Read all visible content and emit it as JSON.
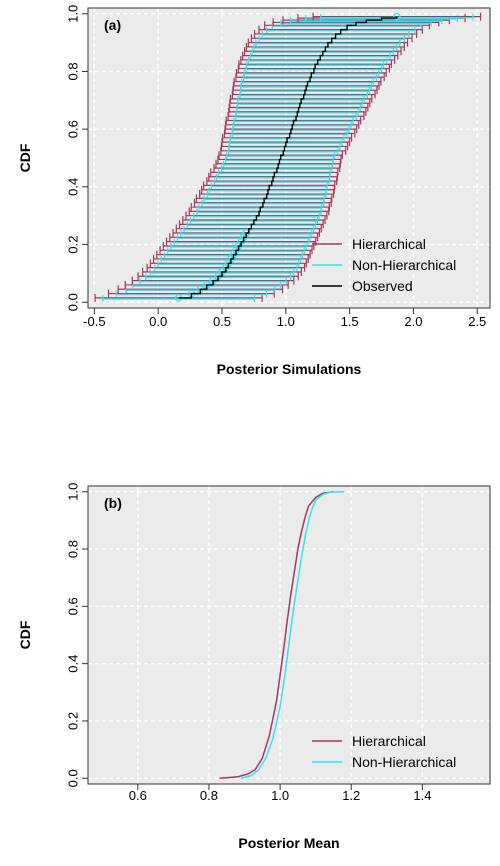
{
  "chart_data": [
    {
      "type": "line",
      "panel_label": "(a)",
      "xlabel": "Posterior Simulations",
      "ylabel": "CDF",
      "xlim": [
        -0.55,
        2.6
      ],
      "ylim": [
        -0.02,
        1.02
      ],
      "x_ticks": [
        "-0.5",
        "0.0",
        "0.5",
        "1.0",
        "1.5",
        "2.0",
        "2.5"
      ],
      "y_ticks": [
        "0.0",
        "0.2",
        "0.4",
        "0.6",
        "0.8",
        "1.0"
      ],
      "grid": true,
      "legend_position": "bottom-right",
      "series": [
        {
          "name": "Hierarchical",
          "color": "#a0395e",
          "style": "interval"
        },
        {
          "name": "Non-Hierarchical",
          "color": "#33e5ee",
          "style": "interval"
        },
        {
          "name": "Observed",
          "color": "#000000",
          "style": "line"
        }
      ],
      "observed": {
        "x": [
          0.16,
          0.26,
          0.33,
          0.38,
          0.43,
          0.47,
          0.5,
          0.53,
          0.55,
          0.57,
          0.59,
          0.61,
          0.63,
          0.65,
          0.67,
          0.69,
          0.71,
          0.73,
          0.75,
          0.77,
          0.79,
          0.8,
          0.82,
          0.83,
          0.85,
          0.86,
          0.87,
          0.89,
          0.9,
          0.91,
          0.93,
          0.94,
          0.95,
          0.96,
          0.98,
          0.99,
          1.0,
          1.01,
          1.03,
          1.04,
          1.05,
          1.06,
          1.08,
          1.09,
          1.1,
          1.11,
          1.12,
          1.14,
          1.15,
          1.16,
          1.17,
          1.19,
          1.2,
          1.22,
          1.23,
          1.25,
          1.27,
          1.29,
          1.31,
          1.33,
          1.36,
          1.39,
          1.43,
          1.48,
          1.55,
          1.63,
          1.75,
          1.87
        ],
        "y": [
          0.015,
          0.03,
          0.045,
          0.06,
          0.075,
          0.09,
          0.105,
          0.12,
          0.135,
          0.15,
          0.165,
          0.18,
          0.195,
          0.21,
          0.225,
          0.24,
          0.255,
          0.27,
          0.285,
          0.3,
          0.315,
          0.33,
          0.345,
          0.36,
          0.375,
          0.39,
          0.405,
          0.42,
          0.435,
          0.45,
          0.465,
          0.48,
          0.495,
          0.51,
          0.525,
          0.54,
          0.555,
          0.57,
          0.585,
          0.6,
          0.615,
          0.63,
          0.645,
          0.66,
          0.675,
          0.69,
          0.705,
          0.72,
          0.735,
          0.75,
          0.765,
          0.78,
          0.795,
          0.81,
          0.825,
          0.84,
          0.855,
          0.87,
          0.885,
          0.9,
          0.915,
          0.93,
          0.945,
          0.96,
          0.97,
          0.978,
          0.985,
          0.99
        ]
      }
    },
    {
      "type": "line",
      "panel_label": "(b)",
      "xlabel": "Posterior Mean",
      "ylabel": "CDF",
      "xlim": [
        0.46,
        1.59
      ],
      "ylim": [
        -0.02,
        1.02
      ],
      "x_ticks": [
        "0.6",
        "0.8",
        "1.0",
        "1.2",
        "1.4"
      ],
      "y_ticks": [
        "0.0",
        "0.2",
        "0.4",
        "0.6",
        "0.8",
        "1.0"
      ],
      "grid": true,
      "legend_position": "bottom-right",
      "series": [
        {
          "name": "Hierarchical",
          "color": "#a0395e",
          "x": [
            0.83,
            0.88,
            0.91,
            0.93,
            0.95,
            0.97,
            0.99,
            1.0,
            1.01,
            1.02,
            1.03,
            1.04,
            1.05,
            1.06,
            1.07,
            1.08,
            1.1,
            1.12,
            1.15
          ],
          "y": [
            0.0,
            0.005,
            0.015,
            0.03,
            0.07,
            0.15,
            0.27,
            0.36,
            0.45,
            0.55,
            0.64,
            0.72,
            0.8,
            0.86,
            0.91,
            0.95,
            0.98,
            0.995,
            1.0
          ]
        },
        {
          "name": "Non-Hierarchical",
          "color": "#33e5ee",
          "x": [
            0.89,
            0.92,
            0.94,
            0.96,
            0.98,
            1.0,
            1.01,
            1.02,
            1.03,
            1.04,
            1.05,
            1.06,
            1.07,
            1.08,
            1.09,
            1.1,
            1.12,
            1.14,
            1.18
          ],
          "y": [
            0.0,
            0.01,
            0.03,
            0.07,
            0.14,
            0.25,
            0.33,
            0.42,
            0.52,
            0.61,
            0.69,
            0.77,
            0.84,
            0.9,
            0.94,
            0.97,
            0.99,
            0.998,
            1.0
          ]
        }
      ]
    }
  ]
}
